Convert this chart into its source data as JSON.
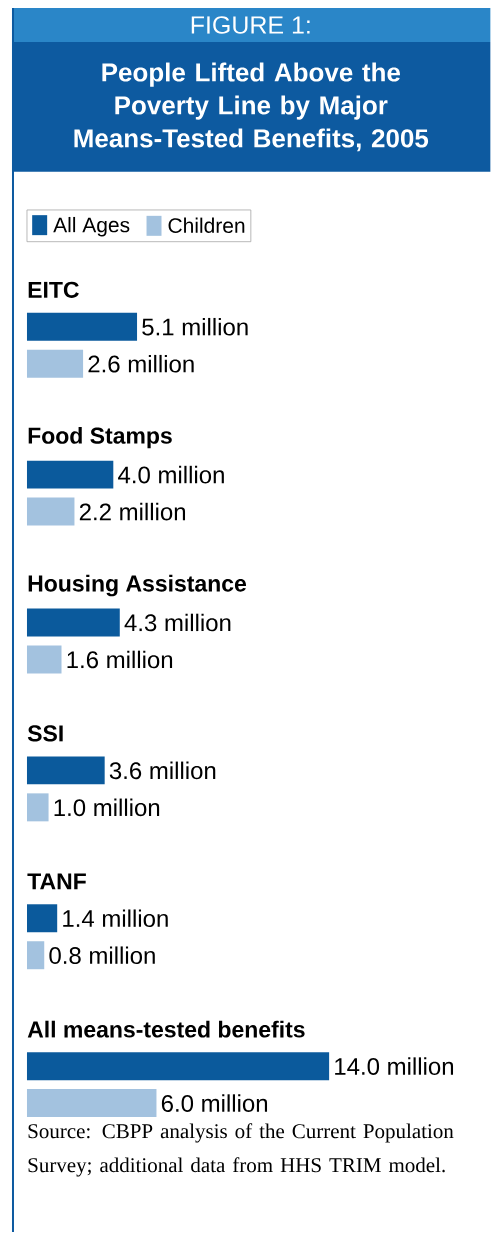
{
  "chart_data": {
    "type": "bar",
    "orientation": "horizontal",
    "title": "FIGURE 1:",
    "subtitle": "People Lifted Above the Poverty Line by Major Means-Tested Benefits, 2005",
    "categories": [
      "EITC",
      "Food Stamps",
      "Housing Assistance",
      "SSI",
      "TANF",
      "All means-tested benefits"
    ],
    "series": [
      {
        "name": "All Ages",
        "color": "#0b5a9c",
        "values": [
          5.1,
          4.0,
          4.3,
          3.6,
          1.4,
          14.0
        ],
        "value_labels": [
          "5.1 million",
          "4.0 million",
          "4.3 million",
          "3.6 million",
          "1.4 million",
          "14.0 million"
        ]
      },
      {
        "name": "Children",
        "color": "#a3c2df",
        "values": [
          2.6,
          2.2,
          1.6,
          1.0,
          0.8,
          6.0
        ],
        "value_labels": [
          "2.6 million",
          "2.2 million",
          "1.6 million",
          "1.0 million",
          "0.8 million",
          "6.0 million"
        ]
      }
    ],
    "legend": "top left",
    "annotations": [
      "Source: CBPP analysis of the Current Population Survey; additional data from HHS TRIM model."
    ]
  }
}
